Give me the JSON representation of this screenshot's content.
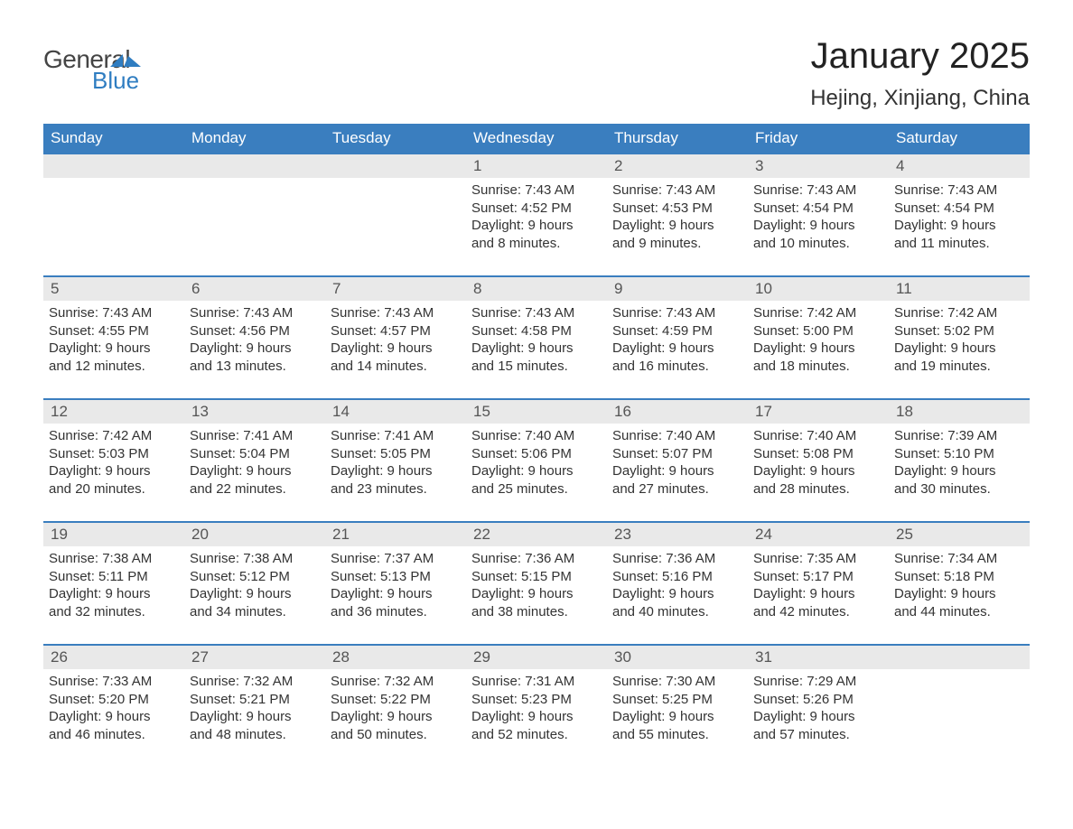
{
  "brand": {
    "word1": "General",
    "word2": "Blue",
    "accent_color": "#2f7dc1",
    "text_color": "#444444"
  },
  "header": {
    "month_title": "January 2025",
    "location": "Hejing, Xinjiang, China",
    "title_fontsize": 40,
    "location_fontsize": 24
  },
  "calendar": {
    "header_bg": "#3a7ebf",
    "header_text_color": "#ffffff",
    "daynum_bg": "#e9e9e9",
    "row_border_color": "#3a7ebf",
    "body_text_color": "#333333",
    "weekdays": [
      "Sunday",
      "Monday",
      "Tuesday",
      "Wednesday",
      "Thursday",
      "Friday",
      "Saturday"
    ],
    "weeks": [
      [
        null,
        null,
        null,
        {
          "num": "1",
          "sunrise": "7:43 AM",
          "sunset": "4:52 PM",
          "dl1": "Daylight: 9 hours",
          "dl2": "and 8 minutes."
        },
        {
          "num": "2",
          "sunrise": "7:43 AM",
          "sunset": "4:53 PM",
          "dl1": "Daylight: 9 hours",
          "dl2": "and 9 minutes."
        },
        {
          "num": "3",
          "sunrise": "7:43 AM",
          "sunset": "4:54 PM",
          "dl1": "Daylight: 9 hours",
          "dl2": "and 10 minutes."
        },
        {
          "num": "4",
          "sunrise": "7:43 AM",
          "sunset": "4:54 PM",
          "dl1": "Daylight: 9 hours",
          "dl2": "and 11 minutes."
        }
      ],
      [
        {
          "num": "5",
          "sunrise": "7:43 AM",
          "sunset": "4:55 PM",
          "dl1": "Daylight: 9 hours",
          "dl2": "and 12 minutes."
        },
        {
          "num": "6",
          "sunrise": "7:43 AM",
          "sunset": "4:56 PM",
          "dl1": "Daylight: 9 hours",
          "dl2": "and 13 minutes."
        },
        {
          "num": "7",
          "sunrise": "7:43 AM",
          "sunset": "4:57 PM",
          "dl1": "Daylight: 9 hours",
          "dl2": "and 14 minutes."
        },
        {
          "num": "8",
          "sunrise": "7:43 AM",
          "sunset": "4:58 PM",
          "dl1": "Daylight: 9 hours",
          "dl2": "and 15 minutes."
        },
        {
          "num": "9",
          "sunrise": "7:43 AM",
          "sunset": "4:59 PM",
          "dl1": "Daylight: 9 hours",
          "dl2": "and 16 minutes."
        },
        {
          "num": "10",
          "sunrise": "7:42 AM",
          "sunset": "5:00 PM",
          "dl1": "Daylight: 9 hours",
          "dl2": "and 18 minutes."
        },
        {
          "num": "11",
          "sunrise": "7:42 AM",
          "sunset": "5:02 PM",
          "dl1": "Daylight: 9 hours",
          "dl2": "and 19 minutes."
        }
      ],
      [
        {
          "num": "12",
          "sunrise": "7:42 AM",
          "sunset": "5:03 PM",
          "dl1": "Daylight: 9 hours",
          "dl2": "and 20 minutes."
        },
        {
          "num": "13",
          "sunrise": "7:41 AM",
          "sunset": "5:04 PM",
          "dl1": "Daylight: 9 hours",
          "dl2": "and 22 minutes."
        },
        {
          "num": "14",
          "sunrise": "7:41 AM",
          "sunset": "5:05 PM",
          "dl1": "Daylight: 9 hours",
          "dl2": "and 23 minutes."
        },
        {
          "num": "15",
          "sunrise": "7:40 AM",
          "sunset": "5:06 PM",
          "dl1": "Daylight: 9 hours",
          "dl2": "and 25 minutes."
        },
        {
          "num": "16",
          "sunrise": "7:40 AM",
          "sunset": "5:07 PM",
          "dl1": "Daylight: 9 hours",
          "dl2": "and 27 minutes."
        },
        {
          "num": "17",
          "sunrise": "7:40 AM",
          "sunset": "5:08 PM",
          "dl1": "Daylight: 9 hours",
          "dl2": "and 28 minutes."
        },
        {
          "num": "18",
          "sunrise": "7:39 AM",
          "sunset": "5:10 PM",
          "dl1": "Daylight: 9 hours",
          "dl2": "and 30 minutes."
        }
      ],
      [
        {
          "num": "19",
          "sunrise": "7:38 AM",
          "sunset": "5:11 PM",
          "dl1": "Daylight: 9 hours",
          "dl2": "and 32 minutes."
        },
        {
          "num": "20",
          "sunrise": "7:38 AM",
          "sunset": "5:12 PM",
          "dl1": "Daylight: 9 hours",
          "dl2": "and 34 minutes."
        },
        {
          "num": "21",
          "sunrise": "7:37 AM",
          "sunset": "5:13 PM",
          "dl1": "Daylight: 9 hours",
          "dl2": "and 36 minutes."
        },
        {
          "num": "22",
          "sunrise": "7:36 AM",
          "sunset": "5:15 PM",
          "dl1": "Daylight: 9 hours",
          "dl2": "and 38 minutes."
        },
        {
          "num": "23",
          "sunrise": "7:36 AM",
          "sunset": "5:16 PM",
          "dl1": "Daylight: 9 hours",
          "dl2": "and 40 minutes."
        },
        {
          "num": "24",
          "sunrise": "7:35 AM",
          "sunset": "5:17 PM",
          "dl1": "Daylight: 9 hours",
          "dl2": "and 42 minutes."
        },
        {
          "num": "25",
          "sunrise": "7:34 AM",
          "sunset": "5:18 PM",
          "dl1": "Daylight: 9 hours",
          "dl2": "and 44 minutes."
        }
      ],
      [
        {
          "num": "26",
          "sunrise": "7:33 AM",
          "sunset": "5:20 PM",
          "dl1": "Daylight: 9 hours",
          "dl2": "and 46 minutes."
        },
        {
          "num": "27",
          "sunrise": "7:32 AM",
          "sunset": "5:21 PM",
          "dl1": "Daylight: 9 hours",
          "dl2": "and 48 minutes."
        },
        {
          "num": "28",
          "sunrise": "7:32 AM",
          "sunset": "5:22 PM",
          "dl1": "Daylight: 9 hours",
          "dl2": "and 50 minutes."
        },
        {
          "num": "29",
          "sunrise": "7:31 AM",
          "sunset": "5:23 PM",
          "dl1": "Daylight: 9 hours",
          "dl2": "and 52 minutes."
        },
        {
          "num": "30",
          "sunrise": "7:30 AM",
          "sunset": "5:25 PM",
          "dl1": "Daylight: 9 hours",
          "dl2": "and 55 minutes."
        },
        {
          "num": "31",
          "sunrise": "7:29 AM",
          "sunset": "5:26 PM",
          "dl1": "Daylight: 9 hours",
          "dl2": "and 57 minutes."
        },
        null
      ]
    ],
    "labels": {
      "sunrise_prefix": "Sunrise: ",
      "sunset_prefix": "Sunset: "
    }
  }
}
